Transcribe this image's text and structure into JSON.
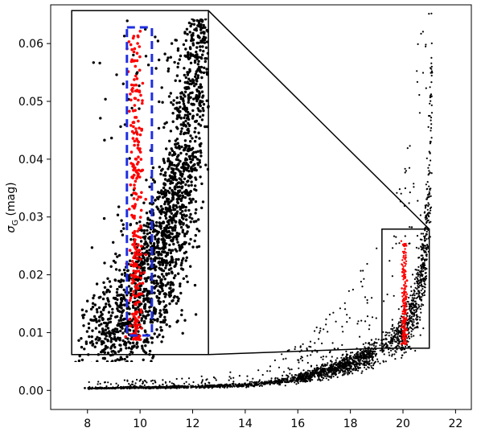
{
  "chart_data": {
    "type": "scatter",
    "title": "",
    "xlabel": "",
    "ylabel_symbol": "σ",
    "ylabel_subscript": "G",
    "ylabel_unit": " (mag)",
    "xlim": [
      6.6,
      22.6
    ],
    "ylim": [
      -0.0033,
      0.0667
    ],
    "xticks": [
      8,
      10,
      12,
      14,
      16,
      18,
      20,
      22
    ],
    "xtick_labels": [
      "8",
      "10",
      "12",
      "14",
      "16",
      "18",
      "20",
      "22"
    ],
    "yticks": [
      0.0,
      0.01,
      0.02,
      0.03,
      0.04,
      0.05,
      0.06
    ],
    "ytick_labels": [
      "0.00",
      "0.01",
      "0.02",
      "0.03",
      "0.04",
      "0.05",
      "0.06"
    ],
    "grid": false,
    "legend": "none",
    "colors": {
      "field_stars": "#000000",
      "selected_stars": "#ff0000",
      "inset_box": "#000000",
      "selection_box": "#1f2fe0"
    },
    "series": [
      {
        "role": "field-stars",
        "x": [
          7.9,
          8.4,
          9.0,
          9.6,
          10.2,
          10.8,
          11.4,
          12.0,
          12.6,
          13.2,
          13.8,
          14.4,
          15.0,
          15.6,
          16.2,
          16.8,
          17.4,
          18.0,
          18.6,
          19.2,
          19.6,
          20.0,
          20.3,
          20.5,
          20.7,
          20.8,
          20.9,
          21.0,
          21.05,
          21.1
        ],
        "y": [
          0.0004,
          0.0004,
          0.0004,
          0.0005,
          0.0005,
          0.0005,
          0.0006,
          0.0006,
          0.0007,
          0.0008,
          0.0009,
          0.0011,
          0.0014,
          0.0018,
          0.0023,
          0.003,
          0.0038,
          0.0048,
          0.0058,
          0.0072,
          0.0085,
          0.01,
          0.0125,
          0.015,
          0.019,
          0.022,
          0.027,
          0.034,
          0.043,
          0.055
        ]
      },
      {
        "role": "selected-stars",
        "x": [
          19.95,
          20.0,
          20.05,
          20.1,
          20.15,
          20.0,
          20.1,
          20.05,
          19.98,
          20.12
        ],
        "y": [
          0.008,
          0.011,
          0.014,
          0.016,
          0.019,
          0.021,
          0.023,
          0.025,
          0.012,
          0.018
        ]
      }
    ],
    "inset": {
      "source_x": [
        19.2,
        21.0
      ],
      "source_y": [
        0.0073,
        0.0279
      ],
      "display_x": [
        7.4,
        12.6
      ],
      "display_y": [
        0.0062,
        0.0657
      ]
    },
    "selection_box": {
      "display_x": [
        9.5,
        10.45
      ],
      "display_y": [
        0.0095,
        0.0628
      ]
    }
  }
}
